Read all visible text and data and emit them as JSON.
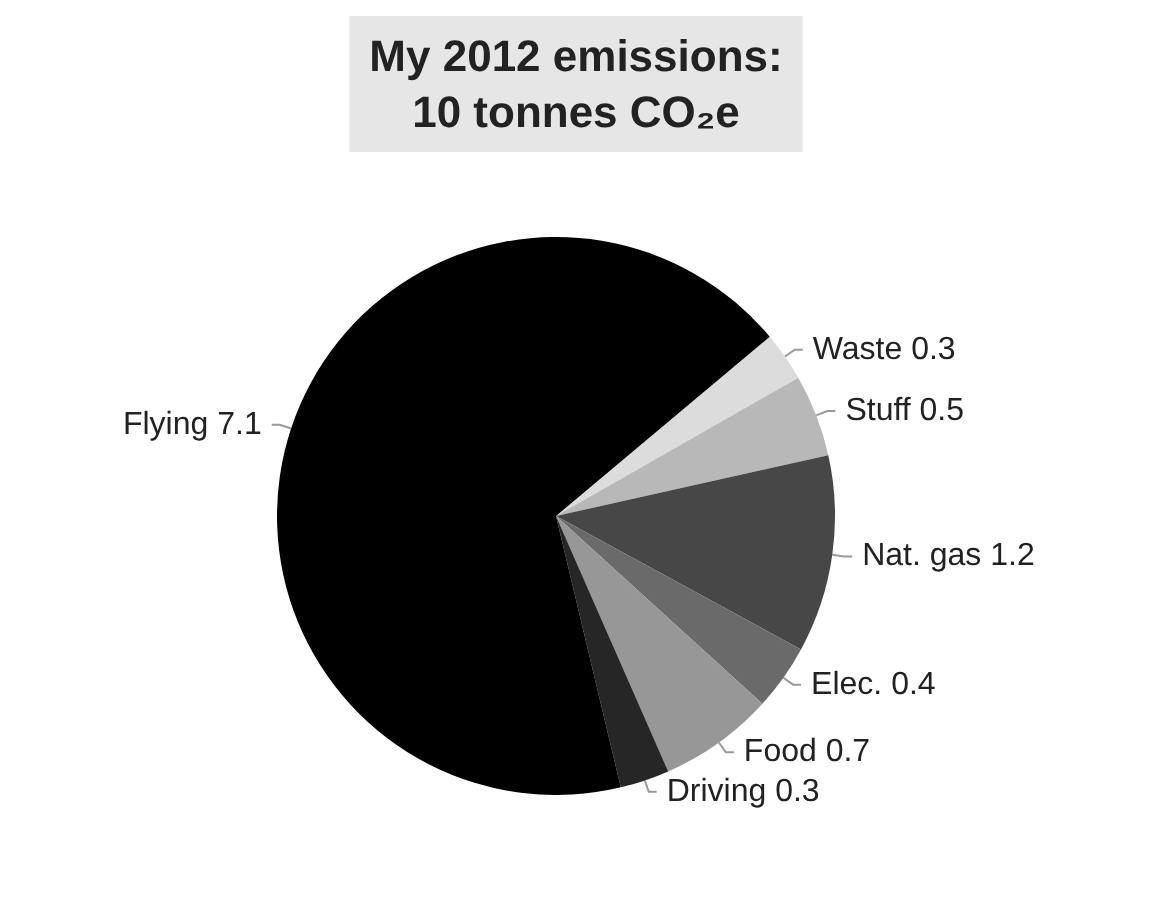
{
  "chart_data": {
    "type": "pie",
    "title": "My 2012 emissions:\n10 tonnes CO₂e",
    "categories": [
      "Waste",
      "Stuff",
      "Nat. gas",
      "Elec.",
      "Food",
      "Driving",
      "Flying"
    ],
    "values": [
      0.3,
      0.5,
      1.2,
      0.4,
      0.7,
      0.3,
      7.1
    ],
    "colors": [
      "#dcdcdc",
      "#b8b8b8",
      "#474747",
      "#6a6a6a",
      "#979797",
      "#262626",
      "#000000"
    ],
    "data_labels": true,
    "legend": false
  }
}
